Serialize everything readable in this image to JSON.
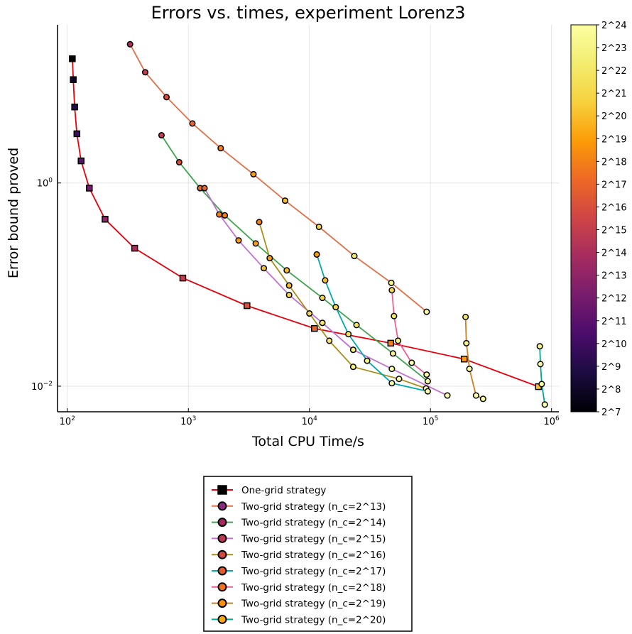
{
  "chart_data": {
    "type": "scatter",
    "title": "Errors vs. times, experiment Lorenz3",
    "xlabel": "Total CPU Time/s",
    "ylabel": "Error bound proved",
    "x_scale": "log10",
    "y_scale": "log10",
    "xlim": [
      83,
      1150000
    ],
    "ylim": [
      0.0056,
      36
    ],
    "grid": true,
    "x_ticks": [
      {
        "value": 100,
        "base": "10",
        "exp": "2"
      },
      {
        "value": 1000,
        "base": "10",
        "exp": "3"
      },
      {
        "value": 10000,
        "base": "10",
        "exp": "4"
      },
      {
        "value": 100000,
        "base": "10",
        "exp": "5"
      },
      {
        "value": 1000000,
        "base": "10",
        "exp": "6"
      }
    ],
    "y_ticks": [
      {
        "value": 0.01,
        "base": "10",
        "exp": "−2"
      },
      {
        "value": 1,
        "base": "10",
        "exp": "0"
      }
    ],
    "colorbar": {
      "colormap": "inferno",
      "range_exp": [
        7,
        24
      ],
      "labels": [
        "2^7",
        "2^8",
        "2^9",
        "2^10",
        "2^11",
        "2^12",
        "2^13",
        "2^14",
        "2^15",
        "2^16",
        "2^17",
        "2^18",
        "2^19",
        "2^20",
        "2^21",
        "2^22",
        "2^23",
        "2^24"
      ]
    },
    "legend_position": "bottom",
    "series": [
      {
        "name": "One-grid strategy",
        "line_color": "#e5000b",
        "marker": "square",
        "legend_marker_color": "#000000",
        "points": [
          {
            "x": 110,
            "y": 16.7,
            "c": 7
          },
          {
            "x": 112,
            "y": 10.4,
            "c": 8
          },
          {
            "x": 115,
            "y": 5.6,
            "c": 9
          },
          {
            "x": 120,
            "y": 3.05,
            "c": 10
          },
          {
            "x": 130,
            "y": 1.65,
            "c": 11
          },
          {
            "x": 152,
            "y": 0.89,
            "c": 12
          },
          {
            "x": 205,
            "y": 0.44,
            "c": 13
          },
          {
            "x": 360,
            "y": 0.228,
            "c": 14
          },
          {
            "x": 900,
            "y": 0.116,
            "c": 15
          },
          {
            "x": 3050,
            "y": 0.062,
            "c": 16
          },
          {
            "x": 11000,
            "y": 0.037,
            "c": 17
          },
          {
            "x": 47000,
            "y": 0.0265,
            "c": 18
          },
          {
            "x": 190000,
            "y": 0.0185,
            "c": 19
          },
          {
            "x": 780000,
            "y": 0.0099,
            "c": 20
          }
        ]
      },
      {
        "name": "Two-grid strategy (n_c=2^13)",
        "line_color": "#e26f46",
        "marker": "circle",
        "legend_marker_color": "#8c2981",
        "points": [
          {
            "x": 330,
            "y": 23.2,
            "c": 14
          },
          {
            "x": 440,
            "y": 12.3,
            "c": 15
          },
          {
            "x": 660,
            "y": 7.0,
            "c": 16
          },
          {
            "x": 1080,
            "y": 3.85,
            "c": 17
          },
          {
            "x": 1850,
            "y": 2.2,
            "c": 18
          },
          {
            "x": 3450,
            "y": 1.22,
            "c": 19
          },
          {
            "x": 6300,
            "y": 0.67,
            "c": 20
          },
          {
            "x": 12000,
            "y": 0.37,
            "c": 21
          },
          {
            "x": 23500,
            "y": 0.191,
            "c": 22
          },
          {
            "x": 47500,
            "y": 0.104,
            "c": 23
          },
          {
            "x": 93000,
            "y": 0.054,
            "c": 24
          }
        ]
      },
      {
        "name": "Two-grid strategy (n_c=2^14)",
        "line_color": "#3da44d",
        "marker": "circle",
        "legend_marker_color": "#a4275d",
        "points": [
          {
            "x": 600,
            "y": 2.95,
            "c": 15
          },
          {
            "x": 840,
            "y": 1.6,
            "c": 16
          },
          {
            "x": 1250,
            "y": 0.89,
            "c": 17
          },
          {
            "x": 2000,
            "y": 0.48,
            "c": 18
          },
          {
            "x": 3600,
            "y": 0.254,
            "c": 19
          },
          {
            "x": 6500,
            "y": 0.138,
            "c": 20
          },
          {
            "x": 12800,
            "y": 0.074,
            "c": 21
          },
          {
            "x": 24500,
            "y": 0.04,
            "c": 22
          },
          {
            "x": 49000,
            "y": 0.021,
            "c": 23
          },
          {
            "x": 95000,
            "y": 0.0112,
            "c": 24
          }
        ]
      },
      {
        "name": "Two-grid strategy (n_c=2^15)",
        "line_color": "#c271d2",
        "marker": "circle",
        "legend_marker_color": "#bc3754",
        "points": [
          {
            "x": 1360,
            "y": 0.89,
            "c": 17
          },
          {
            "x": 1800,
            "y": 0.49,
            "c": 18
          },
          {
            "x": 2600,
            "y": 0.272,
            "c": 19
          },
          {
            "x": 4200,
            "y": 0.145,
            "c": 20
          },
          {
            "x": 6800,
            "y": 0.079,
            "c": 21
          },
          {
            "x": 12800,
            "y": 0.042,
            "c": 22
          },
          {
            "x": 23000,
            "y": 0.0228,
            "c": 23
          },
          {
            "x": 48000,
            "y": 0.0148,
            "c": 24
          },
          {
            "x": 138000,
            "y": 0.0081,
            "c": 25
          }
        ]
      },
      {
        "name": "Two-grid strategy (n_c=2^16)",
        "line_color": "#ac8d18",
        "marker": "circle",
        "legend_marker_color": "#d44842",
        "points": [
          {
            "x": 3850,
            "y": 0.412,
            "c": 18
          },
          {
            "x": 4700,
            "y": 0.182,
            "c": 19
          },
          {
            "x": 6800,
            "y": 0.098,
            "c": 20
          },
          {
            "x": 10000,
            "y": 0.052,
            "c": 21
          },
          {
            "x": 14600,
            "y": 0.028,
            "c": 22
          },
          {
            "x": 23000,
            "y": 0.0155,
            "c": 23
          },
          {
            "x": 55000,
            "y": 0.0118,
            "c": 24
          },
          {
            "x": 92000,
            "y": 0.0095,
            "c": 25
          }
        ]
      },
      {
        "name": "Two-grid strategy (n_c=2^17)",
        "line_color": "#00a9ad",
        "marker": "circle",
        "legend_marker_color": "#e45a31",
        "points": [
          {
            "x": 11500,
            "y": 0.198,
            "c": 19
          },
          {
            "x": 13500,
            "y": 0.11,
            "c": 20
          },
          {
            "x": 16500,
            "y": 0.06,
            "c": 21
          },
          {
            "x": 21000,
            "y": 0.0325,
            "c": 22
          },
          {
            "x": 30000,
            "y": 0.0178,
            "c": 23
          },
          {
            "x": 48000,
            "y": 0.0107,
            "c": 24
          },
          {
            "x": 95000,
            "y": 0.0089,
            "c": 25
          }
        ]
      },
      {
        "name": "Two-grid strategy (n_c=2^18)",
        "line_color": "#ed5e93",
        "marker": "circle",
        "legend_marker_color": "#f1711f",
        "points": [
          {
            "x": 48000,
            "y": 0.088,
            "c": 21
          },
          {
            "x": 50000,
            "y": 0.049,
            "c": 22
          },
          {
            "x": 54000,
            "y": 0.028,
            "c": 23
          },
          {
            "x": 70000,
            "y": 0.017,
            "c": 24
          },
          {
            "x": 93000,
            "y": 0.013,
            "c": 25
          }
        ]
      },
      {
        "name": "Two-grid strategy (n_c=2^19)",
        "line_color": "#c68125",
        "marker": "circle",
        "legend_marker_color": "#f98e09",
        "points": [
          {
            "x": 195000,
            "y": 0.048,
            "c": 22
          },
          {
            "x": 198000,
            "y": 0.0265,
            "c": 23
          },
          {
            "x": 210000,
            "y": 0.0148,
            "c": 24
          },
          {
            "x": 238000,
            "y": 0.0081,
            "c": 25
          },
          {
            "x": 272000,
            "y": 0.0075,
            "c": 26
          }
        ]
      },
      {
        "name": "Two-grid strategy (n_c=2^20)",
        "line_color": "#00a98d",
        "marker": "circle",
        "legend_marker_color": "#fbaa0e",
        "points": [
          {
            "x": 800000,
            "y": 0.0247,
            "c": 23
          },
          {
            "x": 810000,
            "y": 0.0165,
            "c": 24
          },
          {
            "x": 830000,
            "y": 0.0105,
            "c": 25
          },
          {
            "x": 880000,
            "y": 0.0066,
            "c": 26
          }
        ]
      }
    ]
  }
}
